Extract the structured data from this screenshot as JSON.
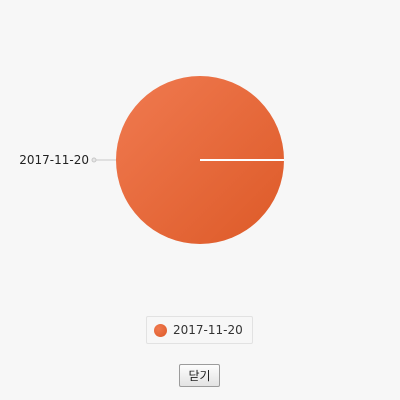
{
  "chart_data": {
    "type": "pie",
    "categories": [
      "2017-11-20"
    ],
    "values": [
      100
    ],
    "legend": [
      "2017-11-20"
    ],
    "legend_position": "bottom-center",
    "colors": [
      "#dd5a28"
    ],
    "gradient_light": "#f07a50"
  },
  "footer": {
    "close_label": "닫기"
  }
}
